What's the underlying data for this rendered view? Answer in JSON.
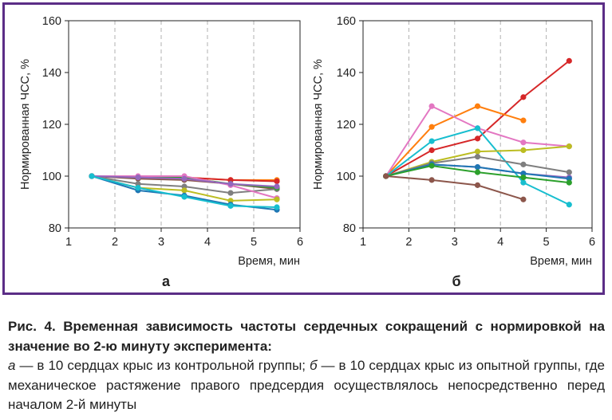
{
  "chart_data": [
    {
      "type": "line",
      "panel_label": "а",
      "xlabel": "Время, мин",
      "ylabel": "Нормированная ЧСС, %",
      "xlim": [
        1,
        6
      ],
      "ylim": [
        80,
        160
      ],
      "xticks": [
        1,
        2,
        3,
        4,
        5,
        6
      ],
      "yticks": [
        80,
        100,
        120,
        140,
        160
      ],
      "grid": "vertical-dashed",
      "x": [
        1.5,
        2.5,
        3.5,
        4.5,
        5.5
      ],
      "series": [
        {
          "color": "#ff7f0e",
          "values": [
            100,
            99.5,
            99.5,
            98.5,
            98.5
          ]
        },
        {
          "color": "#d62728",
          "values": [
            100,
            99.5,
            99.5,
            98.5,
            98
          ]
        },
        {
          "color": "#8c564b",
          "values": [
            100,
            99,
            98.5,
            97,
            95
          ]
        },
        {
          "color": "#7f7f7f",
          "values": [
            100,
            97,
            96,
            93.5,
            95
          ]
        },
        {
          "color": "#2ca02c",
          "values": [
            100,
            99.5,
            99.5,
            97,
            95.5
          ]
        },
        {
          "color": "#e377c2",
          "values": [
            100,
            100,
            100,
            96.5,
            91.5
          ]
        },
        {
          "color": "#bcbd22",
          "values": [
            100,
            95.5,
            94.5,
            90.5,
            91
          ]
        },
        {
          "color": "#1f77b4",
          "values": [
            100,
            94.5,
            92.5,
            89,
            87
          ]
        },
        {
          "color": "#9467bd",
          "values": [
            100,
            99.5,
            99,
            97,
            96
          ]
        },
        {
          "color": "#17becf",
          "values": [
            100,
            95.5,
            92,
            88.5,
            88
          ]
        }
      ]
    },
    {
      "type": "line",
      "panel_label": "б",
      "xlabel": "Время, мин",
      "ylabel": "Нормированная ЧСС, %",
      "xlim": [
        1,
        6
      ],
      "ylim": [
        80,
        160
      ],
      "xticks": [
        1,
        2,
        3,
        4,
        5,
        6
      ],
      "yticks": [
        80,
        100,
        120,
        140,
        160
      ],
      "grid": "vertical-dashed",
      "x": [
        1.5,
        2.5,
        3.5,
        4.5,
        5.5
      ],
      "series": [
        {
          "color": "#d62728",
          "values": [
            100,
            110,
            114.5,
            130.5,
            144.5
          ]
        },
        {
          "color": "#ff7f0e",
          "values": [
            100,
            119,
            127,
            121.5,
            null
          ]
        },
        {
          "color": "#e377c2",
          "values": [
            100,
            127,
            118.5,
            113,
            111.5
          ]
        },
        {
          "color": "#17becf",
          "values": [
            100,
            113.5,
            118.5,
            97.5,
            89
          ]
        },
        {
          "color": "#bcbd22",
          "values": [
            100,
            105.5,
            109.5,
            110,
            111.5
          ]
        },
        {
          "color": "#7f7f7f",
          "values": [
            100,
            105,
            107.5,
            104.5,
            101.5
          ]
        },
        {
          "color": "#9467bd",
          "values": [
            100,
            104.5,
            103.5,
            101,
            99.5
          ]
        },
        {
          "color": "#1f77b4",
          "values": [
            100,
            104.5,
            103.5,
            101,
            99
          ]
        },
        {
          "color": "#2ca02c",
          "values": [
            100,
            104,
            101.5,
            99.5,
            97.5
          ]
        },
        {
          "color": "#8c564b",
          "values": [
            100,
            98.5,
            96.5,
            91,
            null
          ]
        }
      ]
    }
  ],
  "caption": {
    "title": "Рис. 4. Временная зависимость частоты сердечных сокращений с нормировкой на значение во 2-ю минуту эксперимента:",
    "label_a": "а",
    "text_a": " — в 10 сердцах крыс из контрольной группы; ",
    "label_b": "б",
    "text_b": " — в 10 сердцах крыс из опытной группы, где механическое растяжение правого предсердия осуществлялось непосредственно перед началом 2-й минуты"
  }
}
